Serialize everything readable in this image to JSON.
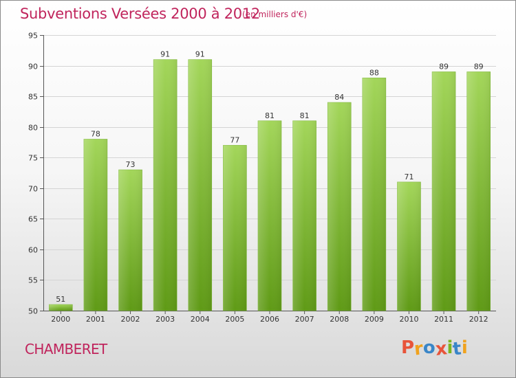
{
  "header": {
    "title": "Subventions Versées 2000 à 2012",
    "unit": "(en milliers d'€)"
  },
  "footer": {
    "commune": "CHAMBERET",
    "logo": "Proxiti"
  },
  "colors": {
    "title": "#c0245c",
    "bar_top": "#a3d65a",
    "bar_bottom": "#5f9a16",
    "logo_letters": [
      "#e8543a",
      "#f0a21e",
      "#3a86c8",
      "#e8543a",
      "#7ab51d",
      "#3a86c8",
      "#f0a21e"
    ]
  },
  "chart_data": {
    "type": "bar",
    "categories": [
      "2000",
      "2001",
      "2002",
      "2003",
      "2004",
      "2005",
      "2006",
      "2007",
      "2008",
      "2009",
      "2010",
      "2011",
      "2012"
    ],
    "values": [
      51,
      78,
      73,
      91,
      91,
      77,
      81,
      81,
      84,
      88,
      71,
      89,
      89
    ],
    "data_labels": [
      "51",
      "78",
      "73",
      "91",
      "91",
      "77",
      "81",
      "81",
      "84",
      "88",
      "71",
      "89",
      "89"
    ],
    "yticks": [
      "50",
      "55",
      "60",
      "65",
      "70",
      "75",
      "80",
      "85",
      "90",
      "95"
    ],
    "ylim": [
      50,
      95
    ],
    "grid": "horizontal",
    "title": "Subventions Versées 2000 à 2012",
    "xlabel": "",
    "ylabel": ""
  }
}
